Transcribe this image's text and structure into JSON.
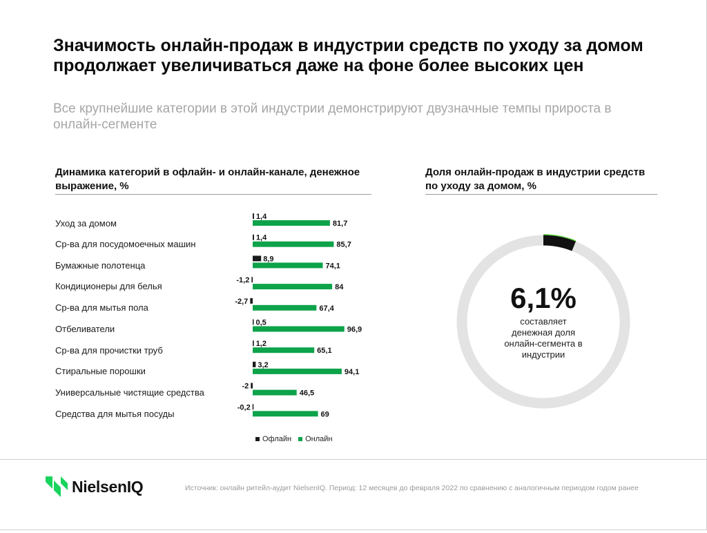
{
  "title": "Значимость онлайн-продаж в индустрии средств по уходу за домом продолжает увеличиваться даже на фоне более высоких цен",
  "subtitle": "Все крупнейшие категории в этой индустрии демонстрируют двузначные темпы прироста в онлайн-сегменте",
  "left_section_title": "Динамика категорий в офлайн- и онлайн-канале, денежное выражение, %",
  "right_section_title": "Доля онлайн-продаж в индустрии средств по уходу за домом, %",
  "colors": {
    "offline": "#1a1a1a",
    "online": "#0da34a",
    "donut_track": "#e3e3e3",
    "donut_accent": "#6ee04f"
  },
  "chart_data": [
    {
      "type": "bar",
      "orientation": "horizontal",
      "categories": [
        "Уход за домом",
        "Ср-ва для посудомоечных машин",
        "Бумажные полотенца",
        "Кондиционеры для белья",
        "Ср-ва для мытья пола",
        "Отбеливатели",
        "Ср-ва для прочистки труб",
        "Стиральные порошки",
        "Универсальные чистящие средства",
        "Средства для мытья посуды"
      ],
      "series": [
        {
          "name": "Офлайн",
          "values": [
            1.4,
            1.4,
            8.9,
            -1.2,
            -2.7,
            0.5,
            1.2,
            3.2,
            -2,
            -0.2
          ],
          "labels": [
            "1,4",
            "1,4",
            "8,9",
            "-1,2",
            "-2,7",
            "0,5",
            "1,2",
            "3,2",
            "-2",
            "-0,2"
          ]
        },
        {
          "name": "Онлайн",
          "values": [
            81.7,
            85.7,
            74.1,
            84,
            67.4,
            96.9,
            65.1,
            94.1,
            46.5,
            69
          ],
          "labels": [
            "81,7",
            "85,7",
            "74,1",
            "84",
            "67,4",
            "96,9",
            "65,1",
            "94,1",
            "46,5",
            "69"
          ]
        }
      ],
      "legend": [
        "Офлайн",
        "Онлайн"
      ],
      "legend_position": "bottom"
    },
    {
      "type": "pie",
      "subtype": "donut",
      "value": 6.1,
      "value_label": "6,1%",
      "description": "составляет денежная доля онлайн-сегмента в индустрии"
    }
  ],
  "footer": {
    "logo_text": "NielsenIQ",
    "source": "Источник: онлайн ритейл-аудит NielsenIQ. Период: 12 месяцев до февраля 2022 по сравнению с аналогичным периодом годом ранее"
  }
}
